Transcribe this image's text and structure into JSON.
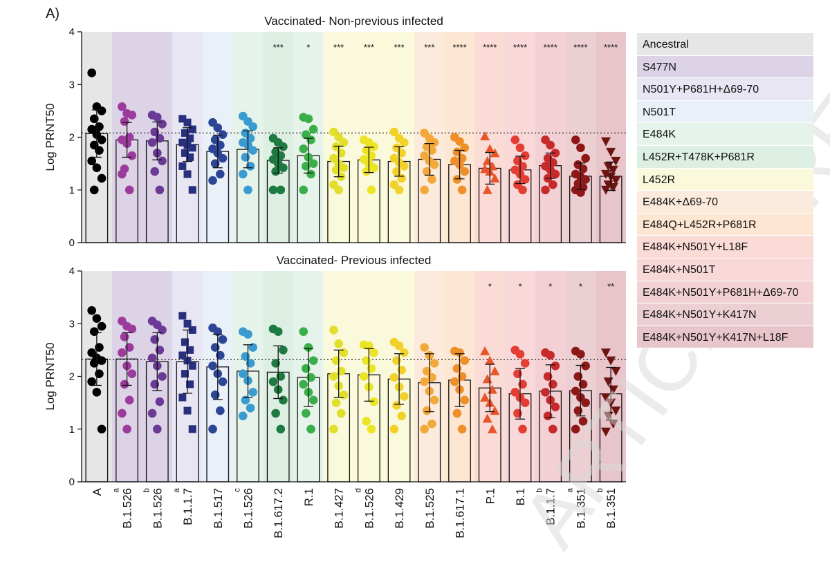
{
  "figure": {
    "panel_label": "A)",
    "watermark": "ARTICLE PREVIEW"
  },
  "legend": [
    {
      "label": "Ancestral",
      "color": "#e6e6e6"
    },
    {
      "label": "S477N",
      "color": "#ddd3e6"
    },
    {
      "label": "N501Y+P681H+Δ69-70",
      "color": "#e8e6f2"
    },
    {
      "label": "N501T",
      "color": "#eaf0f8"
    },
    {
      "label": "E484K",
      "color": "#e6f3ea"
    },
    {
      "label": "L452R+T478K+P681R",
      "color": "#dcefe2"
    },
    {
      "label": "L452R",
      "color": "#fbf9dc"
    },
    {
      "label": "E484K+Δ69-70",
      "color": "#fcebdc"
    },
    {
      "label": "E484Q+L452R+P681R",
      "color": "#fde6d2"
    },
    {
      "label": "E484K+N501Y+L18F",
      "color": "#fbdbd6"
    },
    {
      "label": "E484K+N501T",
      "color": "#f8d8d8"
    },
    {
      "label": "E484K+N501Y+P681H+Δ69-70",
      "color": "#f3d0d3"
    },
    {
      "label": "E484K+N501Y+K417N",
      "color": "#eccfd3"
    },
    {
      "label": "E484K+N501Y+K417N+L18F",
      "color": "#e8c5cb"
    }
  ],
  "chart_data": [
    {
      "type": "bar",
      "title": "Vaccinated- Non-previous infected",
      "ylabel": "Log PRNT50",
      "ylim": [
        0,
        4
      ],
      "yticks": [
        "0",
        "1",
        "2",
        "3",
        "4"
      ],
      "reference_line": 2.08,
      "categories": [
        "A",
        "B.1.526",
        "B.1.526",
        "B.1.1.7",
        "B.1.517",
        "B.1.526",
        "B.1.617.2",
        "R.1",
        "B.1.427",
        "B.1.526",
        "B.1.429",
        "B.1.525",
        "B.1.617.1",
        "P.1",
        "B.1",
        "B.1.1.7",
        "B.1.351",
        "B.1.351"
      ],
      "category_superscripts": [
        "",
        "a",
        "b",
        "a",
        "",
        "c",
        "",
        "",
        "",
        "d",
        "",
        "",
        "",
        "",
        "",
        "b",
        "a",
        "b"
      ],
      "values": [
        2.07,
        1.95,
        1.93,
        1.86,
        1.73,
        1.77,
        1.56,
        1.65,
        1.54,
        1.57,
        1.54,
        1.58,
        1.48,
        1.41,
        1.38,
        1.46,
        1.26,
        1.26
      ],
      "error": [
        0.45,
        0.33,
        0.36,
        0.32,
        0.31,
        0.35,
        0.24,
        0.33,
        0.29,
        0.24,
        0.28,
        0.3,
        0.27,
        0.3,
        0.26,
        0.24,
        0.25,
        0.27
      ],
      "significance": [
        "",
        "",
        "",
        "",
        "",
        "",
        "***",
        "*",
        "***",
        "***",
        "***",
        "***",
        "****",
        "****",
        "****",
        "****",
        "****",
        "****"
      ],
      "points": [
        [
          3.22,
          2.58,
          2.5,
          2.35,
          2.2,
          2.15,
          2.05,
          1.95,
          1.85,
          1.75,
          1.55,
          1.42,
          1.22,
          1.0
        ],
        [
          2.58,
          2.45,
          2.42,
          2.3,
          2.0,
          1.95,
          1.88,
          1.65,
          1.4,
          1.0,
          1.3
        ],
        [
          2.42,
          2.38,
          2.25,
          2.1,
          1.98,
          1.9,
          1.7,
          1.55,
          1.35,
          1.0
        ],
        [
          2.35,
          2.28,
          2.15,
          2.08,
          1.98,
          1.9,
          1.85,
          1.8,
          1.7,
          1.62,
          1.45,
          1.3,
          1.0
        ],
        [
          2.28,
          2.18,
          2.05,
          1.95,
          1.85,
          1.78,
          1.7,
          1.6,
          1.5,
          1.3,
          1.18
        ],
        [
          2.4,
          2.3,
          2.2,
          2.08,
          1.98,
          1.9,
          1.85,
          1.75,
          1.62,
          1.45,
          1.3,
          1.0
        ],
        [
          1.98,
          1.9,
          1.82,
          1.72,
          1.65,
          1.58,
          1.5,
          1.42,
          1.35,
          1.0,
          1.0
        ],
        [
          2.38,
          2.35,
          2.15,
          2.05,
          1.95,
          1.78,
          1.62,
          1.5,
          1.45,
          1.3,
          1.0
        ],
        [
          2.1,
          2.0,
          1.9,
          1.82,
          1.7,
          1.6,
          1.5,
          1.42,
          1.38,
          1.25,
          1.1,
          1.0
        ],
        [
          1.95,
          1.9,
          1.82,
          1.75,
          1.65,
          1.58,
          1.5,
          1.42,
          1.35,
          1.0
        ],
        [
          2.1,
          1.98,
          1.9,
          1.8,
          1.7,
          1.6,
          1.52,
          1.45,
          1.35,
          1.22,
          1.1,
          1.0
        ],
        [
          2.08,
          1.98,
          1.9,
          1.82,
          1.75,
          1.65,
          1.55,
          1.48,
          1.35,
          1.2,
          1.0
        ],
        [
          2.0,
          1.92,
          1.8,
          1.72,
          1.6,
          1.55,
          1.48,
          1.35,
          1.2,
          1.0
        ],
        [
          2.02,
          1.78,
          1.7,
          1.55,
          1.45,
          1.4,
          1.35,
          1.22,
          1.0
        ],
        [
          1.95,
          1.8,
          1.65,
          1.55,
          1.45,
          1.38,
          1.3,
          1.2,
          1.1,
          1.0
        ],
        [
          1.95,
          1.85,
          1.7,
          1.6,
          1.52,
          1.45,
          1.38,
          1.3,
          1.22,
          1.1,
          1.0
        ],
        [
          1.95,
          1.8,
          1.6,
          1.48,
          1.4,
          1.3,
          1.25,
          1.2,
          1.12,
          1.05,
          1.0,
          0.95
        ],
        [
          1.92,
          1.72,
          1.55,
          1.45,
          1.38,
          1.3,
          1.25,
          1.18,
          1.1,
          1.05,
          1.0
        ]
      ]
    },
    {
      "type": "bar",
      "title": "Vaccinated- Previous infected",
      "ylabel": "Log PRNT50",
      "ylim": [
        0,
        4
      ],
      "yticks": [
        "0",
        "1",
        "2",
        "3",
        "4"
      ],
      "reference_line": 2.32,
      "categories": [
        "A",
        "B.1.526",
        "B.1.526",
        "B.1.1.7",
        "B.1.517",
        "B.1.526",
        "B.1.617.2",
        "R.1",
        "B.1.427",
        "B.1.526",
        "B.1.429",
        "B.1.525",
        "B.1.617.1",
        "P.1",
        "B.1",
        "B.1.1.7",
        "B.1.351",
        "B.1.351"
      ],
      "category_superscripts": [
        "",
        "a",
        "b",
        "a",
        "",
        "c",
        "",
        "",
        "",
        "d",
        "",
        "",
        "",
        "",
        "",
        "b",
        "a",
        "b"
      ],
      "values": [
        2.33,
        2.33,
        2.28,
        2.28,
        2.18,
        2.1,
        2.08,
        1.98,
        2.05,
        2.03,
        1.95,
        1.88,
        1.93,
        1.78,
        1.67,
        1.72,
        1.73,
        1.67
      ],
      "error": [
        0.5,
        0.5,
        0.55,
        0.6,
        0.62,
        0.5,
        0.5,
        0.55,
        0.45,
        0.5,
        0.48,
        0.55,
        0.5,
        0.45,
        0.48,
        0.5,
        0.48,
        0.5
      ],
      "significance": [
        "",
        "",
        "",
        "",
        "",
        "",
        "",
        "",
        "",
        "",
        "",
        "",
        "",
        "*",
        "*",
        "*",
        "*",
        "**"
      ],
      "points": [
        [
          3.25,
          3.1,
          2.95,
          2.85,
          2.55,
          2.45,
          2.35,
          2.3,
          2.25,
          2.05,
          1.9,
          1.7,
          1.0
        ],
        [
          3.05,
          2.95,
          2.9,
          2.75,
          2.55,
          2.45,
          2.2,
          2.05,
          1.85,
          1.55,
          1.3,
          1.0
        ],
        [
          3.05,
          2.98,
          2.88,
          2.7,
          2.5,
          2.35,
          2.2,
          2.0,
          1.85,
          1.52,
          1.3,
          1.0
        ],
        [
          3.15,
          3.0,
          2.88,
          2.65,
          2.5,
          2.4,
          2.3,
          2.2,
          2.05,
          1.85,
          1.6,
          1.35,
          1.0
        ],
        [
          2.92,
          2.85,
          2.7,
          2.55,
          2.4,
          2.2,
          2.05,
          1.9,
          1.65,
          1.35,
          1.0
        ],
        [
          2.85,
          2.8,
          2.55,
          2.38,
          2.25,
          2.05,
          1.92,
          1.7,
          1.55,
          1.4,
          1.25
        ],
        [
          2.9,
          2.85,
          2.5,
          2.25,
          2.0,
          1.9,
          1.75,
          1.55,
          1.3,
          1.0
        ],
        [
          2.85,
          2.55,
          2.3,
          2.15,
          1.98,
          1.85,
          1.7,
          1.55,
          1.3,
          1.0
        ],
        [
          2.88,
          2.62,
          2.45,
          2.3,
          2.1,
          2.0,
          1.82,
          1.65,
          1.5,
          1.3,
          1.0
        ],
        [
          2.6,
          2.58,
          2.45,
          2.3,
          2.15,
          2.0,
          1.8,
          1.52,
          1.15,
          1.0
        ],
        [
          2.65,
          2.58,
          2.45,
          2.3,
          2.12,
          1.98,
          1.8,
          1.62,
          1.45,
          1.25,
          1.0
        ],
        [
          2.55,
          2.4,
          2.25,
          2.1,
          1.98,
          1.9,
          1.72,
          1.55,
          1.35,
          1.1,
          1.0
        ],
        [
          2.48,
          2.45,
          2.3,
          2.15,
          2.0,
          1.9,
          1.75,
          1.55,
          1.3,
          1.0
        ],
        [
          2.48,
          2.3,
          2.1,
          1.95,
          1.75,
          1.6,
          1.5,
          1.35,
          1.2,
          1.0
        ],
        [
          2.5,
          2.42,
          2.25,
          2.05,
          1.85,
          1.7,
          1.6,
          1.5,
          1.3,
          1.0
        ],
        [
          2.45,
          2.4,
          2.2,
          2.0,
          1.85,
          1.7,
          1.55,
          1.42,
          1.25,
          1.0
        ],
        [
          2.48,
          2.42,
          2.2,
          2.0,
          1.85,
          1.72,
          1.6,
          1.5,
          1.35,
          1.15,
          1.0
        ],
        [
          2.45,
          2.3,
          2.1,
          1.9,
          1.75,
          1.6,
          1.5,
          1.35,
          1.25,
          1.1,
          0.95
        ]
      ]
    }
  ],
  "category_colors": [
    "#000000",
    "#9b3b9b",
    "#6a3a96",
    "#28307e",
    "#2c4596",
    "#3a9bd1",
    "#1e7a40",
    "#3aae4a",
    "#e2df2a",
    "#ebe525",
    "#f2d22a",
    "#f2a93a",
    "#ee8f2a",
    "#e8552a",
    "#e43d33",
    "#c62a2a",
    "#8e1818",
    "#6e1410"
  ],
  "category_markers": [
    "circle",
    "circle",
    "circle",
    "square",
    "circle",
    "circle",
    "circle",
    "circle",
    "circle",
    "circle",
    "circle",
    "circle",
    "circle",
    "triangle-up",
    "circle",
    "circle",
    "circle",
    "triangle-down"
  ],
  "band_groups": [
    {
      "from": 0,
      "to": 0,
      "color": "#e6e6e6"
    },
    {
      "from": 1,
      "to": 2,
      "color": "#ddd3e6"
    },
    {
      "from": 3,
      "to": 3,
      "color": "#e8e6f2"
    },
    {
      "from": 4,
      "to": 4,
      "color": "#eaf0f8"
    },
    {
      "from": 5,
      "to": 5,
      "color": "#e6f3ea"
    },
    {
      "from": 6,
      "to": 6,
      "color": "#dcefe2"
    },
    {
      "from": 7,
      "to": 7,
      "color": "#e6f3ea"
    },
    {
      "from": 8,
      "to": 10,
      "color": "#fbf9dc"
    },
    {
      "from": 11,
      "to": 11,
      "color": "#fcebdc"
    },
    {
      "from": 12,
      "to": 12,
      "color": "#fde6d2"
    },
    {
      "from": 13,
      "to": 13,
      "color": "#fbdbd6"
    },
    {
      "from": 14,
      "to": 14,
      "color": "#f8d8d8"
    },
    {
      "from": 15,
      "to": 15,
      "color": "#f3d0d3"
    },
    {
      "from": 16,
      "to": 16,
      "color": "#eccfd3"
    },
    {
      "from": 17,
      "to": 17,
      "color": "#e8c5cb"
    }
  ]
}
